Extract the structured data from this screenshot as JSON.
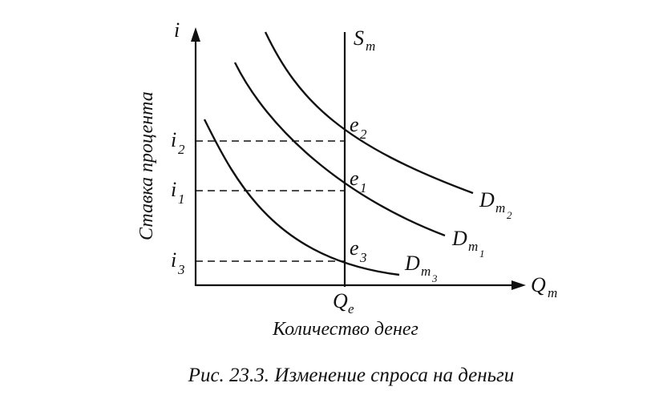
{
  "diagram": {
    "y_axis_symbol": "i",
    "x_axis_symbol": "Q",
    "x_axis_symbol_sub": "m",
    "y_axis_title": "Ставка процента",
    "x_axis_title": "Количество денег",
    "supply_label": "S",
    "supply_label_sub": "m",
    "equilibrium_quantity": "Q",
    "equilibrium_quantity_sub": "e",
    "rates": [
      {
        "base": "i",
        "sub": "2"
      },
      {
        "base": "i",
        "sub": "1"
      },
      {
        "base": "i",
        "sub": "3"
      }
    ],
    "points": [
      {
        "base": "e",
        "sub": "2"
      },
      {
        "base": "e",
        "sub": "1"
      },
      {
        "base": "e",
        "sub": "3"
      }
    ],
    "demand_curves": [
      {
        "base": "D",
        "sub": "m",
        "subsub": "2"
      },
      {
        "base": "D",
        "sub": "m",
        "subsub": "1"
      },
      {
        "base": "D",
        "sub": "m",
        "subsub": "3"
      }
    ]
  },
  "caption": "Рис. 23.3. Изменение спроса на деньги"
}
